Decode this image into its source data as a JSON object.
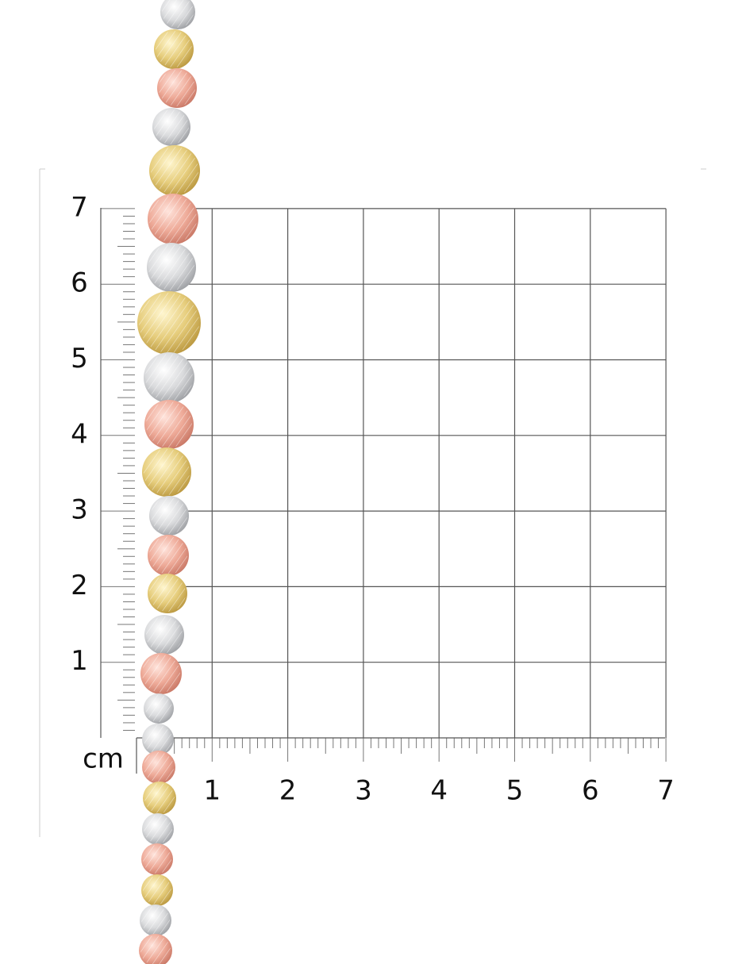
{
  "ruler": {
    "unit": "cm",
    "x_labels": [
      1,
      2,
      3,
      4,
      5,
      6,
      7
    ],
    "y_labels": [
      1,
      2,
      3,
      4,
      5,
      6,
      7
    ]
  }
}
